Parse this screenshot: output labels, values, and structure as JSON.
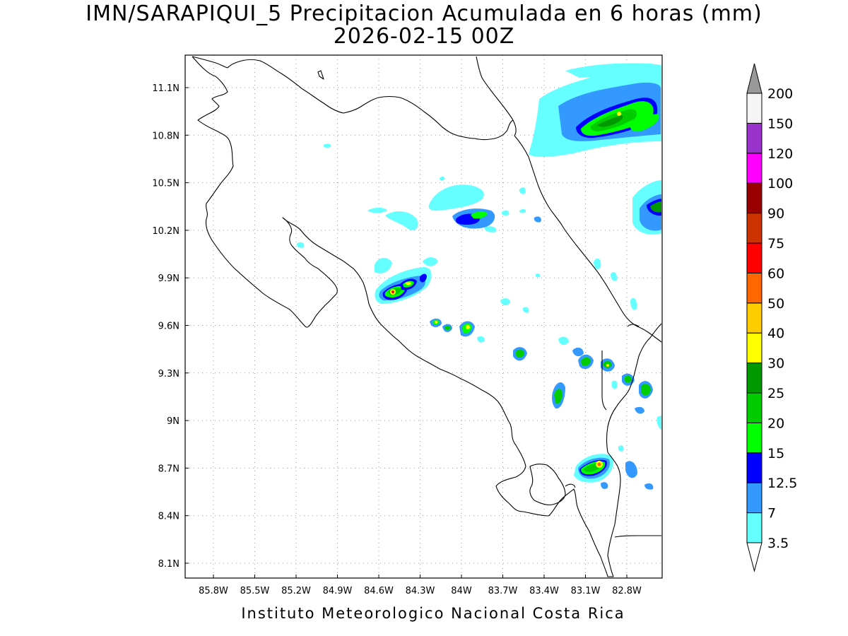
{
  "title": "IMN/SARAPIQUI_5 Precipitacion Acumulada en 6 horas (mm)",
  "subtitle": "2026-02-15 00Z",
  "footer": "Instituto Meteorologico Nacional Costa Rica",
  "map": {
    "lon_range": [
      -86.0,
      -83.0
    ],
    "lat_range": [
      8.0,
      11.2
    ],
    "x_ticks": [
      "85.8W",
      "85.5W",
      "85.2W",
      "84.9W",
      "84.6W",
      "84.3W",
      "84W",
      "83.7W",
      "83.4W",
      "83.1W",
      "82.8W"
    ],
    "y_ticks": [
      "11.1N",
      "10.8N",
      "10.5N",
      "10.2N",
      "9.9N",
      "9.6N",
      "9.3N",
      "9N",
      "8.7N",
      "8.4N",
      "8.1N"
    ]
  },
  "legend": {
    "levels": [
      "3.5",
      "7",
      "12.5",
      "15",
      "20",
      "25",
      "30",
      "40",
      "50",
      "60",
      "75",
      "90",
      "100",
      "120",
      "150",
      "200"
    ],
    "colors": [
      "#66ffff",
      "#3399ff",
      "#0000ff",
      "#00ff00",
      "#00cc00",
      "#009900",
      "#ffff00",
      "#ffcc00",
      "#ff6600",
      "#ff0000",
      "#cc3300",
      "#990000",
      "#ff00ff",
      "#9933cc",
      "#f5f5f5",
      "#999999"
    ]
  }
}
